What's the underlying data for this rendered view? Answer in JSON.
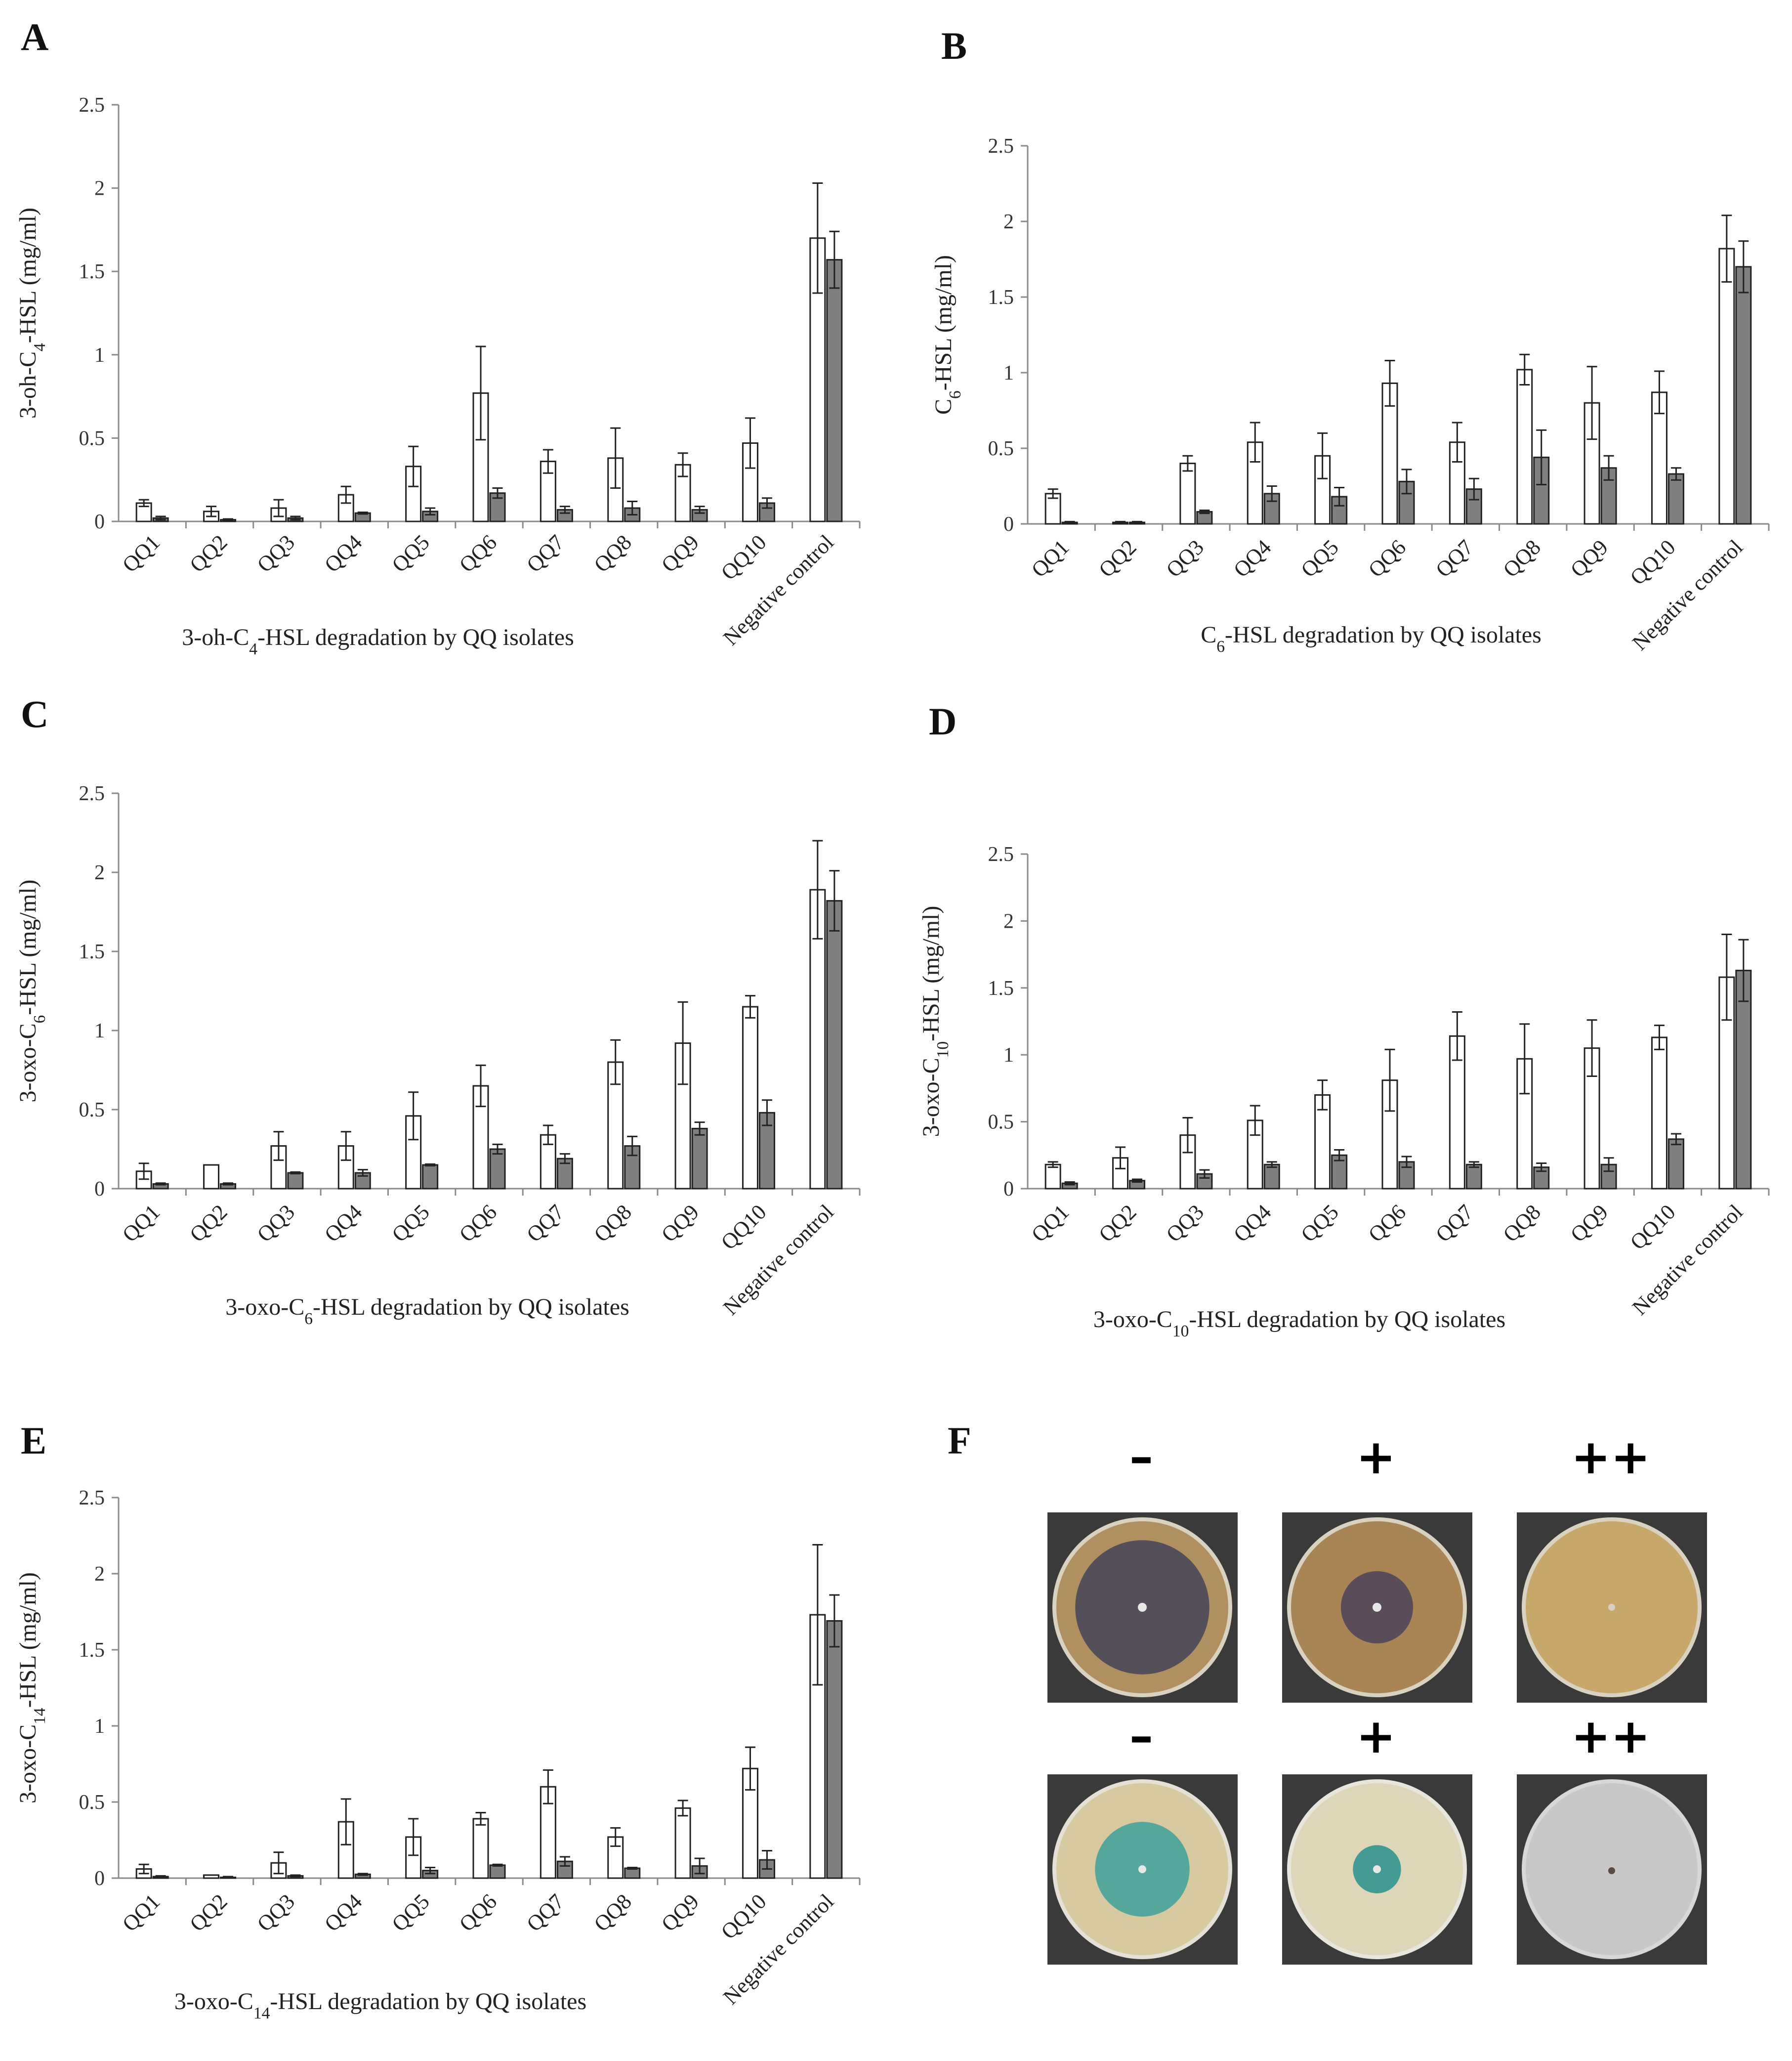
{
  "panel_letters": [
    "A",
    "B",
    "C",
    "D",
    "E",
    "F"
  ],
  "chart_data": [
    {
      "panel": "A",
      "type": "bar",
      "ylabel": {
        "pre": "3-oh-C",
        "sub": "4",
        "post": "-HSL (mg/ml)"
      },
      "xlabel": {
        "pre": "3-oh-C",
        "sub": "4",
        "post": "-HSL  degradation by QQ isolates"
      },
      "categories": [
        "QQ1",
        "QQ2",
        "QQ3",
        "QQ4",
        "QQ5",
        "QQ6",
        "QQ7",
        "QQ8",
        "QQ9",
        "QQ10",
        "Negative control"
      ],
      "ylim": [
        0,
        2.5
      ],
      "yticks": [
        "0",
        "0.5",
        "1",
        "1.5",
        "2",
        "2.5"
      ],
      "series": [
        {
          "name": "white",
          "color": "#ffffff",
          "values": [
            0.11,
            0.06,
            0.08,
            0.16,
            0.33,
            0.77,
            0.36,
            0.38,
            0.34,
            0.47,
            1.7
          ],
          "errors": [
            0.02,
            0.03,
            0.05,
            0.05,
            0.12,
            0.28,
            0.07,
            0.18,
            0.07,
            0.15,
            0.33
          ]
        },
        {
          "name": "gray",
          "color": "#7f7f7f",
          "values": [
            0.02,
            0.01,
            0.02,
            0.05,
            0.06,
            0.17,
            0.07,
            0.08,
            0.07,
            0.11,
            1.57
          ],
          "errors": [
            0.01,
            0.005,
            0.01,
            0.005,
            0.02,
            0.03,
            0.02,
            0.04,
            0.02,
            0.03,
            0.17
          ]
        }
      ]
    },
    {
      "panel": "B",
      "type": "bar",
      "ylabel": {
        "pre": "C",
        "sub": "6",
        "post": "-HSL  (mg/ml)"
      },
      "xlabel": {
        "pre": "C",
        "sub": "6",
        "post": "-HSL  degradation by QQ isolates"
      },
      "categories": [
        "QQ1",
        "QQ2",
        "QQ3",
        "QQ4",
        "QQ5",
        "QQ6",
        "QQ7",
        "QQ8",
        "QQ9",
        "QQ10",
        "Negative control"
      ],
      "ylim": [
        0,
        2.5
      ],
      "yticks": [
        "0",
        "0.5",
        "1",
        "1.5",
        "2",
        "2.5"
      ],
      "series": [
        {
          "name": "white",
          "color": "#ffffff",
          "values": [
            0.2,
            0.01,
            0.4,
            0.54,
            0.45,
            0.93,
            0.54,
            1.02,
            0.8,
            0.87,
            1.82
          ],
          "errors": [
            0.03,
            0.005,
            0.05,
            0.13,
            0.15,
            0.15,
            0.13,
            0.1,
            0.24,
            0.14,
            0.22
          ]
        },
        {
          "name": "gray",
          "color": "#7f7f7f",
          "values": [
            0.01,
            0.01,
            0.08,
            0.2,
            0.18,
            0.28,
            0.23,
            0.44,
            0.37,
            0.33,
            1.7
          ],
          "errors": [
            0.005,
            0.005,
            0.01,
            0.05,
            0.06,
            0.08,
            0.07,
            0.18,
            0.08,
            0.04,
            0.17
          ]
        }
      ]
    },
    {
      "panel": "C",
      "type": "bar",
      "ylabel": {
        "pre": "3-oxo-C",
        "sub": "6",
        "post": "-HSL  (mg/ml)"
      },
      "xlabel": {
        "pre": "3-oxo-C",
        "sub": "6",
        "post": "-HSL  degradation by QQ isolates"
      },
      "categories": [
        "QQ1",
        "QQ2",
        "QQ3",
        "QQ4",
        "QQ5",
        "QQ6",
        "QQ7",
        "QQ8",
        "QQ9",
        "QQ10",
        "Negative control"
      ],
      "ylim": [
        0,
        2.5
      ],
      "yticks": [
        "0",
        "0.5",
        "1",
        "1.5",
        "2",
        "2.5"
      ],
      "series": [
        {
          "name": "white",
          "color": "#ffffff",
          "values": [
            0.11,
            0.15,
            0.27,
            0.27,
            0.46,
            0.65,
            0.34,
            0.8,
            0.92,
            1.15,
            1.89
          ],
          "errors": [
            0.05,
            0.0,
            0.09,
            0.09,
            0.15,
            0.13,
            0.06,
            0.14,
            0.26,
            0.07,
            0.31
          ]
        },
        {
          "name": "gray",
          "color": "#7f7f7f",
          "values": [
            0.03,
            0.03,
            0.1,
            0.1,
            0.15,
            0.25,
            0.19,
            0.27,
            0.38,
            0.48,
            1.82
          ],
          "errors": [
            0.005,
            0.005,
            0.005,
            0.02,
            0.005,
            0.03,
            0.03,
            0.06,
            0.04,
            0.08,
            0.19
          ]
        }
      ]
    },
    {
      "panel": "D",
      "type": "bar",
      "ylabel": {
        "pre": "3-oxo-C",
        "sub": "10",
        "post": "-HSL  (mg/ml)"
      },
      "xlabel": {
        "pre": "3-oxo-C",
        "sub": "10",
        "post": "-HSL  degradation by QQ isolates"
      },
      "categories": [
        "QQ1",
        "QQ2",
        "QQ3",
        "QQ4",
        "QQ5",
        "QQ6",
        "QQ7",
        "QQ8",
        "QQ9",
        "QQ10",
        "Negative control"
      ],
      "ylim": [
        0,
        2.5
      ],
      "yticks": [
        "0",
        "0.5",
        "1",
        "1.5",
        "2",
        "2.5"
      ],
      "series": [
        {
          "name": "white",
          "color": "#ffffff",
          "values": [
            0.18,
            0.23,
            0.4,
            0.51,
            0.7,
            0.81,
            1.14,
            0.97,
            1.05,
            1.13,
            1.58
          ],
          "errors": [
            0.02,
            0.08,
            0.13,
            0.11,
            0.11,
            0.23,
            0.18,
            0.26,
            0.21,
            0.09,
            0.32
          ]
        },
        {
          "name": "gray",
          "color": "#7f7f7f",
          "values": [
            0.04,
            0.06,
            0.11,
            0.18,
            0.25,
            0.2,
            0.18,
            0.16,
            0.18,
            0.37,
            1.63
          ],
          "errors": [
            0.01,
            0.01,
            0.03,
            0.02,
            0.04,
            0.04,
            0.02,
            0.03,
            0.05,
            0.04,
            0.23
          ]
        }
      ]
    },
    {
      "panel": "E",
      "type": "bar",
      "ylabel": {
        "pre": "3-oxo-C",
        "sub": "14",
        "post": "-HSL  (mg/ml)"
      },
      "xlabel": {
        "pre": "3-oxo-C",
        "sub": "14",
        "post": "-HSL  degradation by QQ isolates"
      },
      "categories": [
        "QQ1",
        "QQ2",
        "QQ3",
        "QQ4",
        "QQ5",
        "QQ6",
        "QQ7",
        "QQ8",
        "QQ9",
        "QQ10",
        "Negative control"
      ],
      "ylim": [
        0,
        2.5
      ],
      "yticks": [
        "0",
        "0.5",
        "1",
        "1.5",
        "2",
        "2.5"
      ],
      "series": [
        {
          "name": "white",
          "color": "#ffffff",
          "values": [
            0.06,
            0.02,
            0.1,
            0.37,
            0.27,
            0.39,
            0.6,
            0.27,
            0.46,
            0.72,
            1.73
          ],
          "errors": [
            0.03,
            0.0,
            0.07,
            0.15,
            0.12,
            0.04,
            0.11,
            0.06,
            0.05,
            0.14,
            0.46
          ]
        },
        {
          "name": "gray",
          "color": "#7f7f7f",
          "values": [
            0.01,
            0.005,
            0.015,
            0.025,
            0.05,
            0.085,
            0.11,
            0.065,
            0.08,
            0.12,
            1.69
          ],
          "errors": [
            0.005,
            0.005,
            0.005,
            0.005,
            0.02,
            0.005,
            0.03,
            0.005,
            0.05,
            0.06,
            0.17
          ]
        }
      ]
    }
  ],
  "panel_f": {
    "rows": [
      {
        "plates": [
          {
            "sign": "–",
            "medium": "#b09060",
            "zone": "#4c4a58",
            "zone_size": 0.78
          },
          {
            "sign": "+",
            "medium": "#a98455",
            "zone": "#54485a",
            "zone_size": 0.42
          },
          {
            "sign": "++",
            "medium": "#c7a76a",
            "zone": "#c7a76a",
            "zone_size": 0.0
          }
        ]
      },
      {
        "plates": [
          {
            "sign": "–",
            "medium": "#d8caa0",
            "zone": "#4aa39a",
            "zone_size": 0.55
          },
          {
            "sign": "+",
            "medium": "#ddd6b8",
            "zone": "#35968f",
            "zone_size": 0.28
          },
          {
            "sign": "++",
            "medium": "#c9c7c8",
            "zone": "#c9c7c8",
            "zone_size": 0.0
          }
        ]
      }
    ]
  }
}
